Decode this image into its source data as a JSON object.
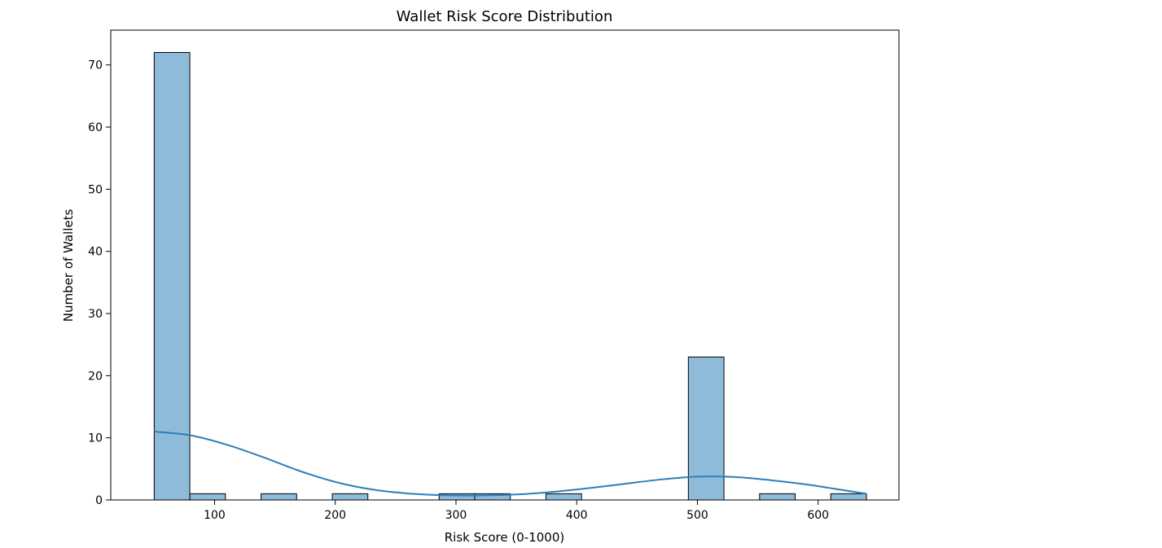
{
  "chart_data": {
    "type": "bar",
    "subtype": "histogram-with-kde",
    "title": "Wallet Risk Score Distribution",
    "xlabel": "Risk Score (0-1000)",
    "ylabel": "Number of Wallets",
    "xlim": [
      14,
      667
    ],
    "ylim": [
      0,
      75.6
    ],
    "x_ticks": [
      100,
      200,
      300,
      400,
      500,
      600
    ],
    "y_ticks": [
      0,
      10,
      20,
      30,
      40,
      50,
      60,
      70
    ],
    "grid": false,
    "bins": [
      {
        "start": 50,
        "end": 79.5,
        "count": 72
      },
      {
        "start": 79.5,
        "end": 109,
        "count": 1
      },
      {
        "start": 138.5,
        "end": 168,
        "count": 1
      },
      {
        "start": 197.5,
        "end": 227,
        "count": 1
      },
      {
        "start": 286,
        "end": 315.5,
        "count": 1
      },
      {
        "start": 315.5,
        "end": 345,
        "count": 1
      },
      {
        "start": 374.5,
        "end": 404,
        "count": 1
      },
      {
        "start": 492.5,
        "end": 522,
        "count": 23
      },
      {
        "start": 551.5,
        "end": 581,
        "count": 1
      },
      {
        "start": 610.5,
        "end": 640,
        "count": 1
      }
    ],
    "kde": {
      "x": [
        50,
        80,
        110,
        140,
        170,
        200,
        230,
        260,
        290,
        320,
        350,
        380,
        410,
        440,
        470,
        500,
        530,
        560,
        590,
        620,
        640
      ],
      "y": [
        11.0,
        10.4,
        8.9,
        6.9,
        4.7,
        2.9,
        1.7,
        1.05,
        0.75,
        0.72,
        0.88,
        1.3,
        1.9,
        2.6,
        3.3,
        3.75,
        3.7,
        3.2,
        2.5,
        1.6,
        1.0
      ]
    },
    "colors": {
      "bar_fill": "#8fbbdb",
      "bar_edge": "#000000",
      "kde_line": "#2d7fb8"
    }
  }
}
